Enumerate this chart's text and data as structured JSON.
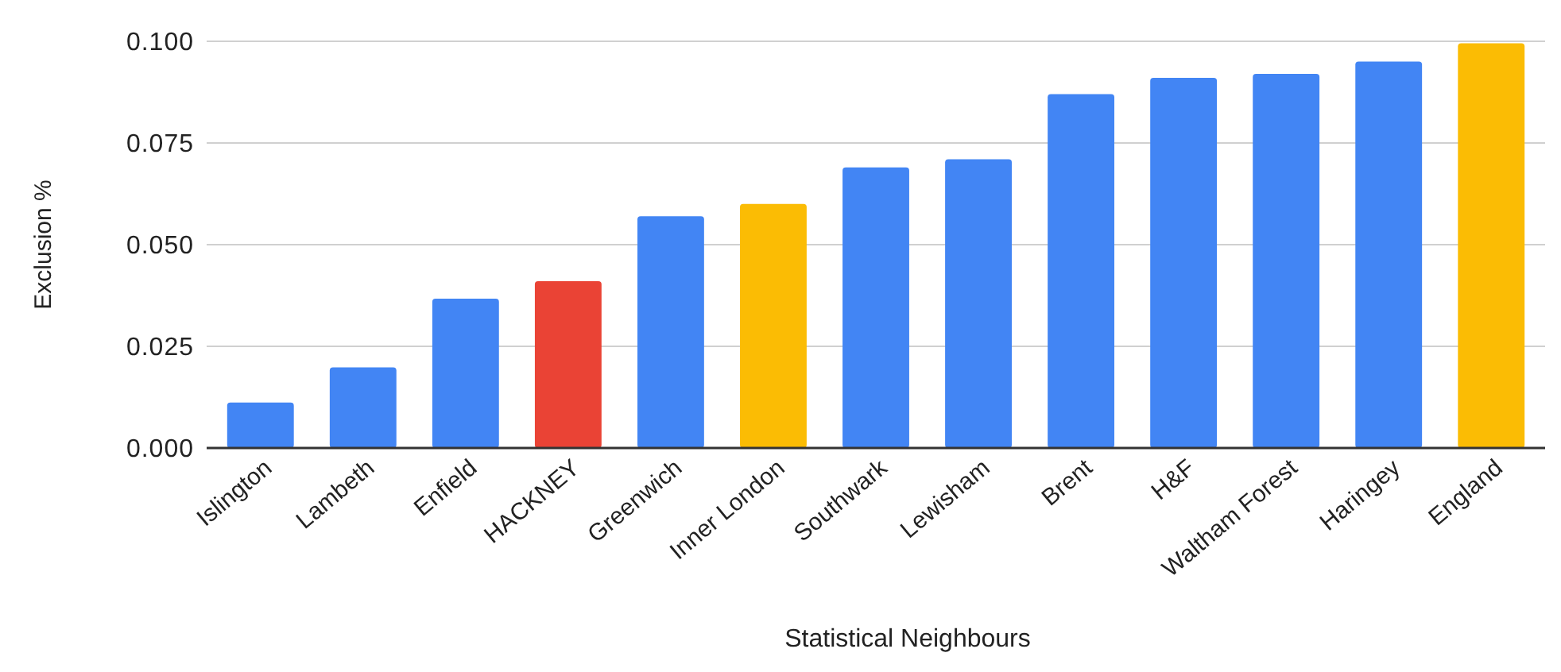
{
  "chart_data": {
    "type": "bar",
    "xlabel": "Statistical Neighbours",
    "ylabel": "Exclusion %",
    "categories": [
      "Islington",
      "Lambeth",
      "Enfield",
      "HACKNEY",
      "Greenwich",
      "Inner London",
      "Southwark",
      "Lewisham",
      "Brent",
      "H&F",
      "Waltham Forest",
      "Haringey",
      "England"
    ],
    "values": [
      0.0112,
      0.0198,
      0.0367,
      0.041,
      0.057,
      0.06,
      0.069,
      0.071,
      0.087,
      0.091,
      0.092,
      0.095,
      0.0995
    ],
    "colors": [
      "#4285f4",
      "#4285f4",
      "#4285f4",
      "#ea4335",
      "#4285f4",
      "#fbbc04",
      "#4285f4",
      "#4285f4",
      "#4285f4",
      "#4285f4",
      "#4285f4",
      "#4285f4",
      "#fbbc04"
    ],
    "ylim": [
      0,
      0.1
    ],
    "yticks": [
      {
        "value": 0,
        "label": "0.000"
      },
      {
        "value": 0.025,
        "label": "0.025"
      },
      {
        "value": 0.05,
        "label": "0.050"
      },
      {
        "value": 0.075,
        "label": "0.075"
      },
      {
        "value": 0.1,
        "label": "0.100"
      }
    ],
    "grid": "y"
  }
}
